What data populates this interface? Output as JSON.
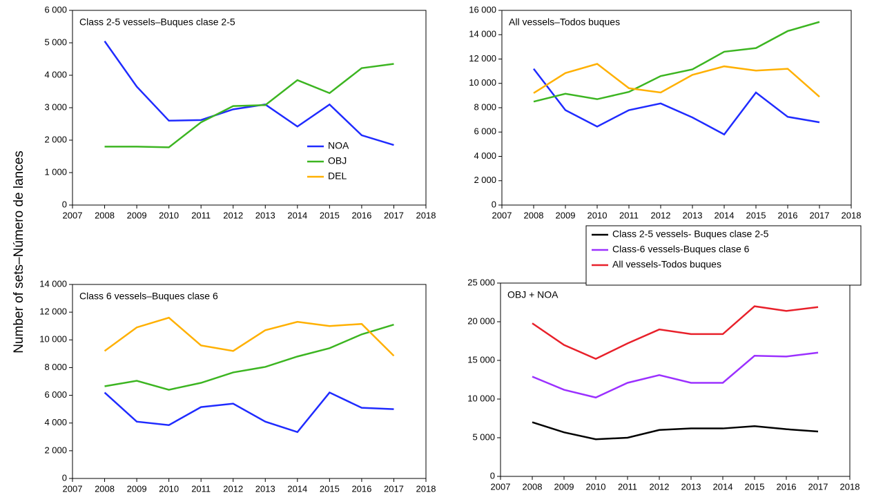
{
  "ylabel": "Number of sets–Número de lances",
  "chart_data": [
    {
      "type": "line",
      "title": "Class 2-5 vessels–Buques clase 2-5",
      "x": [
        2008,
        2009,
        2010,
        2011,
        2012,
        2013,
        2014,
        2015,
        2016,
        2017
      ],
      "series": [
        {
          "name": "NOA",
          "color": "#1f2bff",
          "values": [
            5050,
            3650,
            2600,
            2620,
            2950,
            3100,
            2420,
            3100,
            2150,
            1850
          ]
        },
        {
          "name": "OBJ",
          "color": "#3cb521",
          "values": [
            1800,
            1800,
            1780,
            2550,
            3050,
            3080,
            3850,
            3450,
            4220,
            4350
          ]
        },
        {
          "name": "DEL",
          "color": "#ffb000",
          "values": [
            null,
            null,
            null,
            null,
            null,
            null,
            null,
            null,
            null,
            null
          ]
        }
      ],
      "xlim": [
        2007,
        2018
      ],
      "xticks": [
        2007,
        2008,
        2009,
        2010,
        2011,
        2012,
        2013,
        2014,
        2015,
        2016,
        2017,
        2018
      ],
      "ylim": [
        0,
        6000
      ],
      "yticks": [
        0,
        {
          "value": 1000,
          "label": "1 000"
        },
        {
          "value": 2000,
          "label": "2 000"
        },
        {
          "value": 3000,
          "label": "3 000"
        },
        {
          "value": 4000,
          "label": "4 000"
        },
        {
          "value": 5000,
          "label": "5 000"
        },
        {
          "value": 6000,
          "label": "6 000"
        }
      ],
      "legend": "lower-right"
    },
    {
      "type": "line",
      "title": "All vessels–Todos buques",
      "x": [
        2008,
        2009,
        2010,
        2011,
        2012,
        2013,
        2014,
        2015,
        2016,
        2017
      ],
      "series": [
        {
          "color": "#1f2bff",
          "values": [
            11200,
            7800,
            6450,
            7800,
            8350,
            7200,
            5800,
            9250,
            7250,
            6800
          ]
        },
        {
          "color": "#3cb521",
          "values": [
            8500,
            9150,
            8700,
            9300,
            10600,
            11150,
            12600,
            12900,
            14300,
            15050
          ]
        },
        {
          "color": "#ffb000",
          "values": [
            9200,
            10850,
            11600,
            9600,
            9250,
            10700,
            11400,
            11050,
            11200,
            8900
          ]
        }
      ],
      "xlim": [
        2007,
        2018
      ],
      "xticks": [
        2007,
        2008,
        2009,
        2010,
        2011,
        2012,
        2013,
        2014,
        2015,
        2016,
        2017,
        2018
      ],
      "ylim": [
        0,
        16000
      ],
      "yticks": [
        0,
        {
          "value": 2000,
          "label": "2 000"
        },
        {
          "value": 4000,
          "label": "4 000"
        },
        {
          "value": 6000,
          "label": "6 000"
        },
        {
          "value": 8000,
          "label": "8 000"
        },
        {
          "value": 10000,
          "label": "10 000"
        },
        {
          "value": 12000,
          "label": "12 000"
        },
        {
          "value": 14000,
          "label": "14 000"
        },
        {
          "value": 16000,
          "label": "16 000"
        }
      ]
    },
    {
      "type": "line",
      "title": "Class 6 vessels–Buques clase 6",
      "x": [
        2008,
        2009,
        2010,
        2011,
        2012,
        2013,
        2014,
        2015,
        2016,
        2017
      ],
      "series": [
        {
          "color": "#1f2bff",
          "values": [
            6200,
            4100,
            3850,
            5150,
            5400,
            4100,
            3350,
            6200,
            5100,
            5000
          ]
        },
        {
          "color": "#3cb521",
          "values": [
            6650,
            7050,
            6400,
            6900,
            7650,
            8050,
            8800,
            9400,
            10400,
            11100
          ]
        },
        {
          "color": "#ffb000",
          "values": [
            9200,
            10900,
            11600,
            9600,
            9200,
            10700,
            11300,
            11000,
            11150,
            8850
          ]
        }
      ],
      "xlim": [
        2007,
        2018
      ],
      "xticks": [
        2007,
        2008,
        2009,
        2010,
        2011,
        2012,
        2013,
        2014,
        2015,
        2016,
        2017,
        2018
      ],
      "ylim": [
        0,
        14000
      ],
      "yticks": [
        0,
        {
          "value": 2000,
          "label": "2 000"
        },
        {
          "value": 4000,
          "label": "4 000"
        },
        {
          "value": 6000,
          "label": "6 000"
        },
        {
          "value": 8000,
          "label": "8 000"
        },
        {
          "value": 10000,
          "label": "10 000"
        },
        {
          "value": 12000,
          "label": "12 000"
        },
        {
          "value": 14000,
          "label": "14 000"
        }
      ]
    },
    {
      "type": "line",
      "title": "OBJ + NOA",
      "x": [
        2008,
        2009,
        2010,
        2011,
        2012,
        2013,
        2014,
        2015,
        2016,
        2017
      ],
      "series": [
        {
          "name": "Class 2-5 vessels- Buques clase 2-5",
          "color": "#000000",
          "values": [
            7000,
            5700,
            4800,
            5000,
            6000,
            6200,
            6200,
            6500,
            6100,
            5800
          ]
        },
        {
          "name": "Class-6 vessels-Buques clase 6",
          "color": "#9b30ff",
          "values": [
            12900,
            11200,
            10200,
            12100,
            13100,
            12100,
            12100,
            15600,
            15500,
            16000
          ]
        },
        {
          "name": "All vessels-Todos buques",
          "color": "#e8202a",
          "values": [
            19800,
            17000,
            15200,
            17200,
            19000,
            18400,
            18400,
            22000,
            21400,
            21900
          ]
        }
      ],
      "xlim": [
        2007,
        2018
      ],
      "xticks": [
        2007,
        2008,
        2009,
        2010,
        2011,
        2012,
        2013,
        2014,
        2015,
        2016,
        2017,
        2018
      ],
      "ylim": [
        0,
        25000
      ],
      "yticks": [
        0,
        {
          "value": 5000,
          "label": "5 000"
        },
        {
          "value": 10000,
          "label": "10 000"
        },
        {
          "value": 15000,
          "label": "15 000"
        },
        {
          "value": 20000,
          "label": "20 000"
        },
        {
          "value": 25000,
          "label": "25 000"
        }
      ],
      "legend": "upper-right"
    }
  ]
}
